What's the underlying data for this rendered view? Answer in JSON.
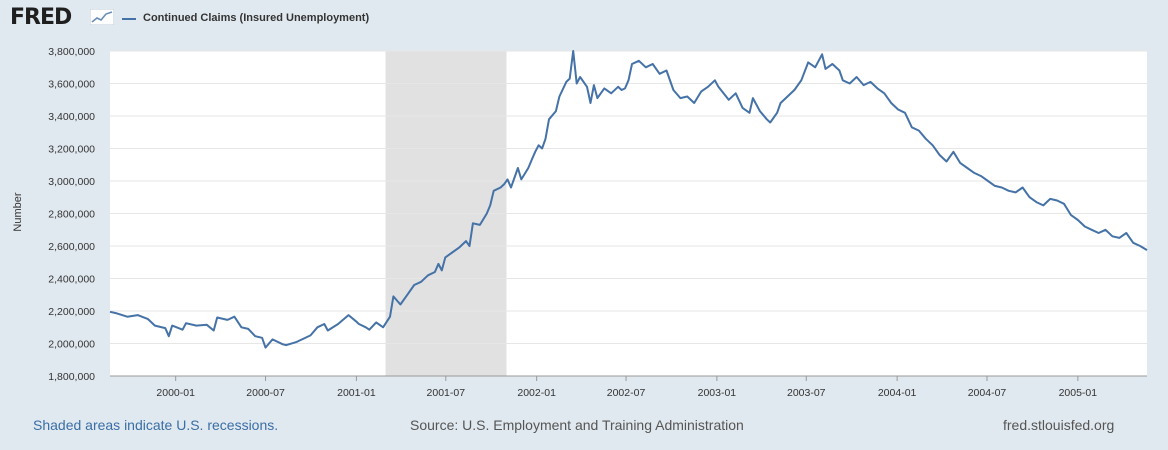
{
  "header": {
    "logo_text": "FRED",
    "legend_label": "Continued Claims (Insured Unemployment)"
  },
  "footer": {
    "recession_note": "Shaded areas indicate U.S. recessions.",
    "source": "Source: U.S. Employment and Training Administration",
    "site": "fred.stlouisfed.org"
  },
  "colors": {
    "line": "#4572a7",
    "recession": "#e1e1e1",
    "background": "#e1e9f0",
    "plot": "#ffffff",
    "grid": "#e6e6e6"
  },
  "chart_data": {
    "type": "line",
    "title": "",
    "xlabel": "",
    "ylabel": "Number",
    "x_range": [
      "1999-08-21",
      "2005-05-21"
    ],
    "ylim": [
      1800000,
      3800000
    ],
    "y_ticks": [
      1800000,
      2000000,
      2200000,
      2400000,
      2600000,
      2800000,
      3000000,
      3200000,
      3400000,
      3600000,
      3800000
    ],
    "y_tick_labels": [
      "1,800,000",
      "2,000,000",
      "2,200,000",
      "2,400,000",
      "2,600,000",
      "2,800,000",
      "3,000,000",
      "3,200,000",
      "3,400,000",
      "3,600,000",
      "3,800,000"
    ],
    "x_ticks": [
      "2000-01",
      "2000-07",
      "2001-01",
      "2001-07",
      "2002-01",
      "2002-07",
      "2003-01",
      "2003-07",
      "2004-01",
      "2004-07",
      "2005-01"
    ],
    "grid": true,
    "legend": "top-left",
    "recessions": [
      [
        "2001-03-01",
        "2001-11-01"
      ]
    ],
    "series": [
      {
        "name": "Continued Claims (Insured Unemployment)",
        "points": [
          [
            "1999-08-21",
            2195000
          ],
          [
            "1999-09-04",
            2185000
          ],
          [
            "1999-09-25",
            2165000
          ],
          [
            "1999-10-16",
            2175000
          ],
          [
            "1999-11-06",
            2150000
          ],
          [
            "1999-11-20",
            2110000
          ],
          [
            "1999-12-11",
            2095000
          ],
          [
            "1999-12-18",
            2045000
          ],
          [
            "1999-12-25",
            2110000
          ],
          [
            "2000-01-15",
            2085000
          ],
          [
            "2000-01-22",
            2125000
          ],
          [
            "2000-02-12",
            2110000
          ],
          [
            "2000-03-04",
            2115000
          ],
          [
            "2000-03-18",
            2080000
          ],
          [
            "2000-03-25",
            2160000
          ],
          [
            "2000-04-15",
            2145000
          ],
          [
            "2000-04-29",
            2165000
          ],
          [
            "2000-05-13",
            2100000
          ],
          [
            "2000-05-27",
            2090000
          ],
          [
            "2000-06-10",
            2045000
          ],
          [
            "2000-06-24",
            2035000
          ],
          [
            "2000-07-01",
            1975000
          ],
          [
            "2000-07-15",
            2025000
          ],
          [
            "2000-08-05",
            1995000
          ],
          [
            "2000-08-12",
            1990000
          ],
          [
            "2000-09-02",
            2010000
          ],
          [
            "2000-09-16",
            2030000
          ],
          [
            "2000-09-30",
            2050000
          ],
          [
            "2000-10-14",
            2100000
          ],
          [
            "2000-10-28",
            2120000
          ],
          [
            "2000-11-04",
            2080000
          ],
          [
            "2000-11-25",
            2120000
          ],
          [
            "2000-12-16",
            2175000
          ],
          [
            "2000-12-30",
            2140000
          ],
          [
            "2001-01-06",
            2120000
          ],
          [
            "2001-01-20",
            2100000
          ],
          [
            "2001-01-27",
            2085000
          ],
          [
            "2001-02-10",
            2130000
          ],
          [
            "2001-02-24",
            2100000
          ],
          [
            "2001-03-10",
            2165000
          ],
          [
            "2001-03-17",
            2290000
          ],
          [
            "2001-03-31",
            2240000
          ],
          [
            "2001-04-14",
            2300000
          ],
          [
            "2001-04-28",
            2360000
          ],
          [
            "2001-05-12",
            2380000
          ],
          [
            "2001-05-26",
            2420000
          ],
          [
            "2001-06-09",
            2440000
          ],
          [
            "2001-06-16",
            2490000
          ],
          [
            "2001-06-23",
            2450000
          ],
          [
            "2001-06-30",
            2530000
          ],
          [
            "2001-07-14",
            2560000
          ],
          [
            "2001-07-28",
            2590000
          ],
          [
            "2001-08-11",
            2630000
          ],
          [
            "2001-08-18",
            2600000
          ],
          [
            "2001-08-25",
            2740000
          ],
          [
            "2001-09-08",
            2730000
          ],
          [
            "2001-09-22",
            2800000
          ],
          [
            "2001-09-29",
            2850000
          ],
          [
            "2001-10-06",
            2940000
          ],
          [
            "2001-10-20",
            2960000
          ],
          [
            "2001-10-27",
            2980000
          ],
          [
            "2001-11-03",
            3010000
          ],
          [
            "2001-11-10",
            2960000
          ],
          [
            "2001-11-24",
            3080000
          ],
          [
            "2001-12-01",
            3010000
          ],
          [
            "2001-12-15",
            3080000
          ],
          [
            "2001-12-22",
            3130000
          ],
          [
            "2001-12-29",
            3180000
          ],
          [
            "2002-01-05",
            3220000
          ],
          [
            "2002-01-12",
            3200000
          ],
          [
            "2002-01-19",
            3260000
          ],
          [
            "2002-01-26",
            3380000
          ],
          [
            "2002-02-09",
            3430000
          ],
          [
            "2002-02-16",
            3520000
          ],
          [
            "2002-03-02",
            3610000
          ],
          [
            "2002-03-09",
            3630000
          ],
          [
            "2002-03-16",
            3800000
          ],
          [
            "2002-03-23",
            3600000
          ],
          [
            "2002-03-30",
            3640000
          ],
          [
            "2002-04-13",
            3580000
          ],
          [
            "2002-04-20",
            3480000
          ],
          [
            "2002-04-27",
            3590000
          ],
          [
            "2002-05-04",
            3510000
          ],
          [
            "2002-05-18",
            3570000
          ],
          [
            "2002-06-01",
            3540000
          ],
          [
            "2002-06-15",
            3580000
          ],
          [
            "2002-06-22",
            3560000
          ],
          [
            "2002-06-29",
            3570000
          ],
          [
            "2002-07-06",
            3620000
          ],
          [
            "2002-07-13",
            3720000
          ],
          [
            "2002-07-27",
            3740000
          ],
          [
            "2002-08-10",
            3700000
          ],
          [
            "2002-08-24",
            3720000
          ],
          [
            "2002-09-07",
            3660000
          ],
          [
            "2002-09-21",
            3680000
          ],
          [
            "2002-10-05",
            3560000
          ],
          [
            "2002-10-19",
            3510000
          ],
          [
            "2002-11-02",
            3520000
          ],
          [
            "2002-11-16",
            3480000
          ],
          [
            "2002-11-30",
            3550000
          ],
          [
            "2002-12-14",
            3580000
          ],
          [
            "2002-12-28",
            3620000
          ],
          [
            "2003-01-04",
            3580000
          ],
          [
            "2003-01-25",
            3500000
          ],
          [
            "2003-02-08",
            3540000
          ],
          [
            "2003-02-22",
            3450000
          ],
          [
            "2003-03-08",
            3420000
          ],
          [
            "2003-03-15",
            3510000
          ],
          [
            "2003-03-29",
            3430000
          ],
          [
            "2003-04-12",
            3380000
          ],
          [
            "2003-04-19",
            3360000
          ],
          [
            "2003-05-03",
            3420000
          ],
          [
            "2003-05-10",
            3480000
          ],
          [
            "2003-05-24",
            3520000
          ],
          [
            "2003-06-07",
            3560000
          ],
          [
            "2003-06-21",
            3620000
          ],
          [
            "2003-07-05",
            3730000
          ],
          [
            "2003-07-19",
            3700000
          ],
          [
            "2003-08-02",
            3780000
          ],
          [
            "2003-08-09",
            3690000
          ],
          [
            "2003-08-23",
            3720000
          ],
          [
            "2003-09-06",
            3680000
          ],
          [
            "2003-09-13",
            3620000
          ],
          [
            "2003-09-27",
            3600000
          ],
          [
            "2003-10-11",
            3640000
          ],
          [
            "2003-10-25",
            3590000
          ],
          [
            "2003-11-08",
            3610000
          ],
          [
            "2003-11-22",
            3570000
          ],
          [
            "2003-12-06",
            3540000
          ],
          [
            "2003-12-20",
            3480000
          ],
          [
            "2004-01-03",
            3440000
          ],
          [
            "2004-01-17",
            3420000
          ],
          [
            "2004-01-31",
            3330000
          ],
          [
            "2004-02-14",
            3310000
          ],
          [
            "2004-02-28",
            3260000
          ],
          [
            "2004-03-13",
            3220000
          ],
          [
            "2004-03-27",
            3160000
          ],
          [
            "2004-04-10",
            3120000
          ],
          [
            "2004-04-24",
            3180000
          ],
          [
            "2004-05-08",
            3110000
          ],
          [
            "2004-05-22",
            3080000
          ],
          [
            "2004-06-05",
            3050000
          ],
          [
            "2004-06-19",
            3030000
          ],
          [
            "2004-07-03",
            3000000
          ],
          [
            "2004-07-17",
            2970000
          ],
          [
            "2004-07-31",
            2960000
          ],
          [
            "2004-08-14",
            2940000
          ],
          [
            "2004-08-28",
            2930000
          ],
          [
            "2004-09-11",
            2960000
          ],
          [
            "2004-09-25",
            2900000
          ],
          [
            "2004-10-09",
            2870000
          ],
          [
            "2004-10-23",
            2850000
          ],
          [
            "2004-11-06",
            2890000
          ],
          [
            "2004-11-20",
            2880000
          ],
          [
            "2004-12-04",
            2860000
          ],
          [
            "2004-12-18",
            2790000
          ],
          [
            "2005-01-01",
            2760000
          ],
          [
            "2005-01-15",
            2720000
          ],
          [
            "2005-01-29",
            2700000
          ],
          [
            "2005-02-12",
            2680000
          ],
          [
            "2005-02-26",
            2700000
          ],
          [
            "2005-03-12",
            2660000
          ],
          [
            "2005-03-26",
            2650000
          ],
          [
            "2005-04-09",
            2680000
          ],
          [
            "2005-04-23",
            2620000
          ],
          [
            "2005-05-07",
            2600000
          ],
          [
            "2005-05-21",
            2575000
          ]
        ]
      }
    ]
  }
}
